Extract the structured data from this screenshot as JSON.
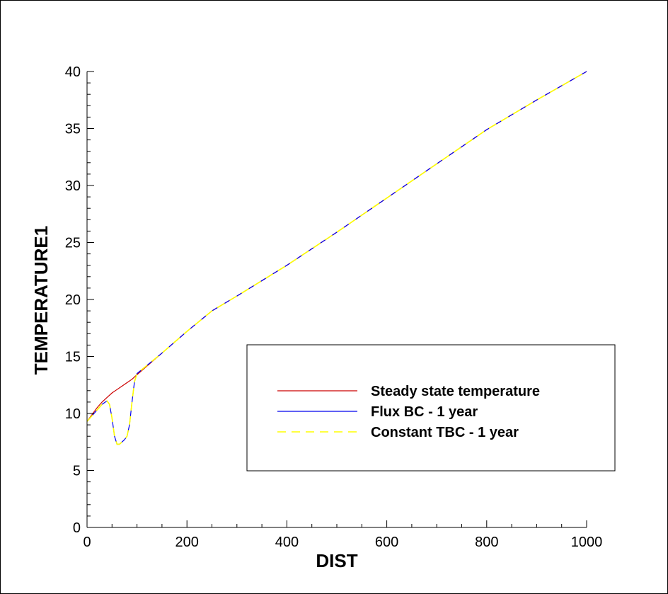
{
  "chart_data": {
    "type": "line",
    "title": "",
    "xlabel": "DIST",
    "ylabel": "TEMPERATURE1",
    "xlim": [
      0,
      1000
    ],
    "ylim": [
      0,
      40
    ],
    "xticks": [
      0,
      200,
      400,
      600,
      800,
      1000
    ],
    "yticks": [
      0,
      5,
      10,
      15,
      20,
      25,
      30,
      35,
      40
    ],
    "grid": false,
    "legend_position": "right",
    "series": [
      {
        "name": "Steady state temperature",
        "color": "#cc0000",
        "dash": "solid",
        "x": [
          0,
          10,
          20,
          30,
          40,
          50,
          60,
          70,
          80,
          90,
          100,
          150,
          200,
          250,
          300,
          400,
          500,
          600,
          700,
          800,
          900,
          1000
        ],
        "y": [
          9.3,
          9.9,
          10.5,
          11.0,
          11.4,
          11.8,
          12.1,
          12.4,
          12.7,
          13.0,
          13.4,
          15.3,
          17.2,
          19.0,
          20.3,
          23.0,
          25.9,
          28.9,
          31.9,
          34.9,
          37.5,
          40.0
        ]
      },
      {
        "name": "Flux BC - 1 year",
        "color": "#0000ee",
        "dash": "solid",
        "x": [
          0,
          10,
          20,
          30,
          40,
          45,
          50,
          55,
          60,
          65,
          70,
          75,
          80,
          85,
          90,
          95,
          100,
          150,
          200,
          250,
          300,
          400,
          500,
          600,
          700,
          800,
          900,
          1000
        ],
        "y": [
          9.3,
          9.8,
          10.3,
          10.8,
          11.1,
          10.8,
          9.6,
          8.0,
          7.3,
          7.3,
          7.5,
          7.7,
          8.0,
          9.0,
          11.0,
          12.8,
          13.5,
          15.3,
          17.2,
          19.0,
          20.3,
          23.0,
          25.9,
          28.9,
          31.9,
          34.9,
          37.5,
          40.0
        ]
      },
      {
        "name": "Constant TBC - 1 year",
        "color": "#ffff00",
        "dash": "dashed",
        "x": [
          0,
          10,
          20,
          30,
          40,
          45,
          50,
          55,
          60,
          65,
          70,
          75,
          80,
          85,
          90,
          95,
          100,
          150,
          200,
          250,
          300,
          400,
          500,
          600,
          700,
          800,
          900,
          1000
        ],
        "y": [
          9.3,
          9.8,
          10.3,
          10.8,
          11.1,
          10.8,
          9.6,
          8.0,
          7.3,
          7.3,
          7.5,
          7.7,
          8.0,
          9.0,
          11.0,
          12.8,
          13.5,
          15.3,
          17.2,
          19.0,
          20.3,
          23.0,
          25.9,
          28.9,
          31.9,
          34.9,
          37.5,
          40.0
        ]
      }
    ]
  }
}
